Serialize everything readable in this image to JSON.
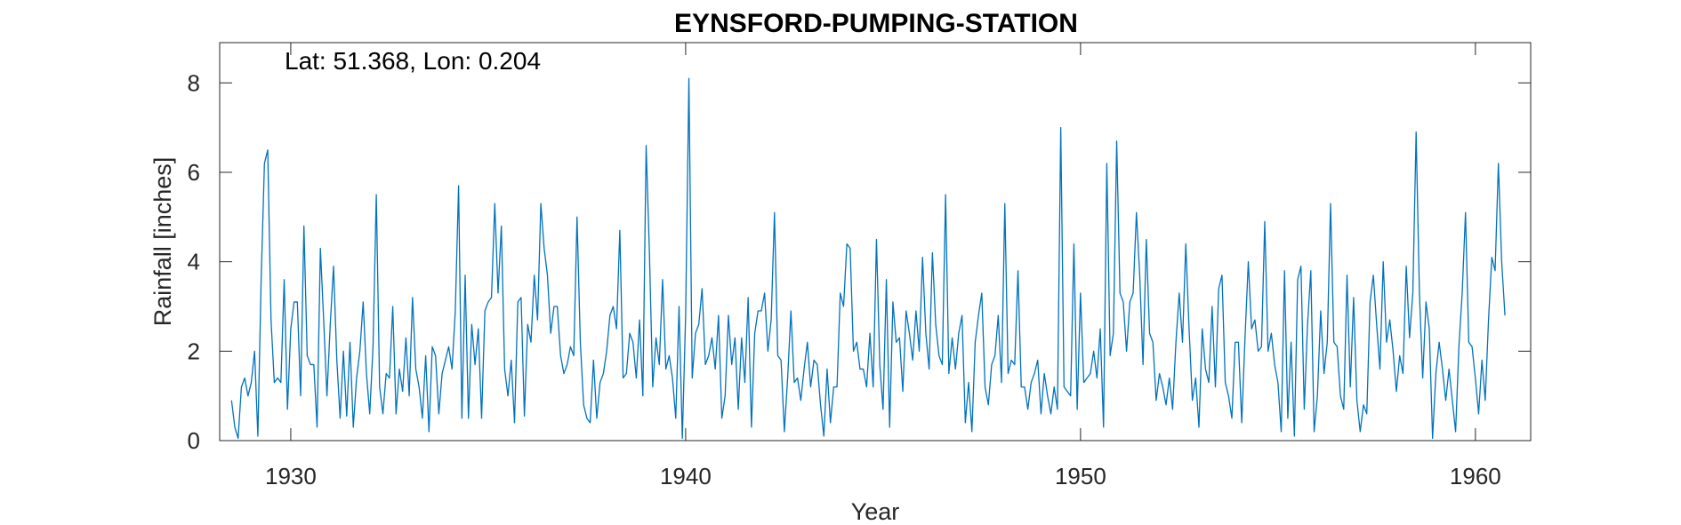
{
  "chart_data": {
    "type": "line",
    "title": "EYNSFORD-PUMPING-STATION",
    "annotation": "Lat: 51.368, Lon: 0.204",
    "xlabel": "Year",
    "ylabel": "Rainfall [inches]",
    "xlim": [
      1928.2,
      1961.4
    ],
    "ylim": [
      0,
      8.9
    ],
    "xticks": [
      1930,
      1940,
      1950,
      1960
    ],
    "yticks": [
      0,
      2,
      4,
      6,
      8
    ],
    "grid": false,
    "line_color": "#0072BD",
    "series": [
      {
        "x_start": 1928.5,
        "x_step": 0.08333,
        "values": [
          0.9,
          0.3,
          0.05,
          1.2,
          1.4,
          1.0,
          1.3,
          2.0,
          0.1,
          3.6,
          6.2,
          6.5,
          2.7,
          1.3,
          1.4,
          1.3,
          3.6,
          0.7,
          2.5,
          3.1,
          3.1,
          1.0,
          4.8,
          1.9,
          1.7,
          1.7,
          0.3,
          4.3,
          2.7,
          1.0,
          2.6,
          3.9,
          1.8,
          0.5,
          2.0,
          0.55,
          2.2,
          0.3,
          1.4,
          2.0,
          3.1,
          1.5,
          0.6,
          2.1,
          5.5,
          1.2,
          0.6,
          1.5,
          1.4,
          3.0,
          0.6,
          1.6,
          1.1,
          2.3,
          1.0,
          3.2,
          1.6,
          1.2,
          0.5,
          1.9,
          0.2,
          2.1,
          1.9,
          0.6,
          1.5,
          1.8,
          2.1,
          1.6,
          2.9,
          5.7,
          0.5,
          3.7,
          0.5,
          2.6,
          1.7,
          2.5,
          0.5,
          2.9,
          3.1,
          3.2,
          5.3,
          3.3,
          4.8,
          1.6,
          1.0,
          1.8,
          0.4,
          3.1,
          3.2,
          0.55,
          2.6,
          2.2,
          3.7,
          2.7,
          5.3,
          4.3,
          3.7,
          2.4,
          3.0,
          3.0,
          1.9,
          1.5,
          1.7,
          2.1,
          1.9,
          5.0,
          2.2,
          0.8,
          0.5,
          0.4,
          1.8,
          0.5,
          1.3,
          1.5,
          2.0,
          2.8,
          3.0,
          2.5,
          4.7,
          1.4,
          1.5,
          2.4,
          2.2,
          1.4,
          2.7,
          1.0,
          6.6,
          4.2,
          1.2,
          2.3,
          1.7,
          3.6,
          1.6,
          1.9,
          1.4,
          0.5,
          3.0,
          0.05,
          2.8,
          8.1,
          1.4,
          2.4,
          2.6,
          3.4,
          1.7,
          1.9,
          2.3,
          1.6,
          2.8,
          0.5,
          1.0,
          2.8,
          1.7,
          2.3,
          0.7,
          2.3,
          1.3,
          3.2,
          0.3,
          2.4,
          2.9,
          2.9,
          3.3,
          2.0,
          2.7,
          5.1,
          1.9,
          1.8,
          0.2,
          1.4,
          2.9,
          1.3,
          1.4,
          0.9,
          1.6,
          2.2,
          1.2,
          1.8,
          1.7,
          0.8,
          0.1,
          1.6,
          0.4,
          1.2,
          1.2,
          3.3,
          3.0,
          4.4,
          4.3,
          2.0,
          2.2,
          1.6,
          1.6,
          1.2,
          2.4,
          1.2,
          4.5,
          1.7,
          0.7,
          3.6,
          0.3,
          3.1,
          2.2,
          2.3,
          1.1,
          2.9,
          2.4,
          1.8,
          2.9,
          2.0,
          4.1,
          2.4,
          1.6,
          4.2,
          2.6,
          1.9,
          1.7,
          5.5,
          1.5,
          2.3,
          1.6,
          2.4,
          2.8,
          0.4,
          1.3,
          0.2,
          2.2,
          2.8,
          3.3,
          1.2,
          0.8,
          1.7,
          1.9,
          2.8,
          1.3,
          5.3,
          1.5,
          1.8,
          1.7,
          3.8,
          1.2,
          1.2,
          0.7,
          1.3,
          1.5,
          1.8,
          0.6,
          1.5,
          1.0,
          0.6,
          1.2,
          0.7,
          7.0,
          1.2,
          1.1,
          1.0,
          4.4,
          0.7,
          3.3,
          1.3,
          1.4,
          1.5,
          2.0,
          1.4,
          2.5,
          0.3,
          6.2,
          1.9,
          2.4,
          6.7,
          3.3,
          3.1,
          2.0,
          3.1,
          3.3,
          5.1,
          3.7,
          1.7,
          4.5,
          2.4,
          2.2,
          0.9,
          1.5,
          1.2,
          0.8,
          1.4,
          0.7,
          2.2,
          3.3,
          2.2,
          4.4,
          2.5,
          0.9,
          1.4,
          0.3,
          2.5,
          1.6,
          1.3,
          3.0,
          1.2,
          3.4,
          3.7,
          1.3,
          1.0,
          0.5,
          2.2,
          2.2,
          0.4,
          2.3,
          4.0,
          2.5,
          2.7,
          2.0,
          2.1,
          4.9,
          2.0,
          2.4,
          1.7,
          1.3,
          0.2,
          3.8,
          0.5,
          2.2,
          0.1,
          3.6,
          3.9,
          0.7,
          2.6,
          3.8,
          0.2,
          1.0,
          2.9,
          1.5,
          2.2,
          5.3,
          2.2,
          2.1,
          1.0,
          0.7,
          3.7,
          1.2,
          3.2,
          0.9,
          0.2,
          0.8,
          0.6,
          3.1,
          3.7,
          2.6,
          1.6,
          4.0,
          2.2,
          2.7,
          2.0,
          1.1,
          1.9,
          1.5,
          3.9,
          2.3,
          3.3,
          6.9,
          3.3,
          1.4,
          3.1,
          2.5,
          0.05,
          1.5,
          2.2,
          1.6,
          0.9,
          1.6,
          0.9,
          0.2,
          2.1,
          3.3,
          5.1,
          2.2,
          2.1,
          1.4,
          0.6,
          1.8,
          0.9,
          2.7,
          4.1,
          3.8,
          6.2,
          4.0,
          2.8
        ]
      }
    ]
  }
}
